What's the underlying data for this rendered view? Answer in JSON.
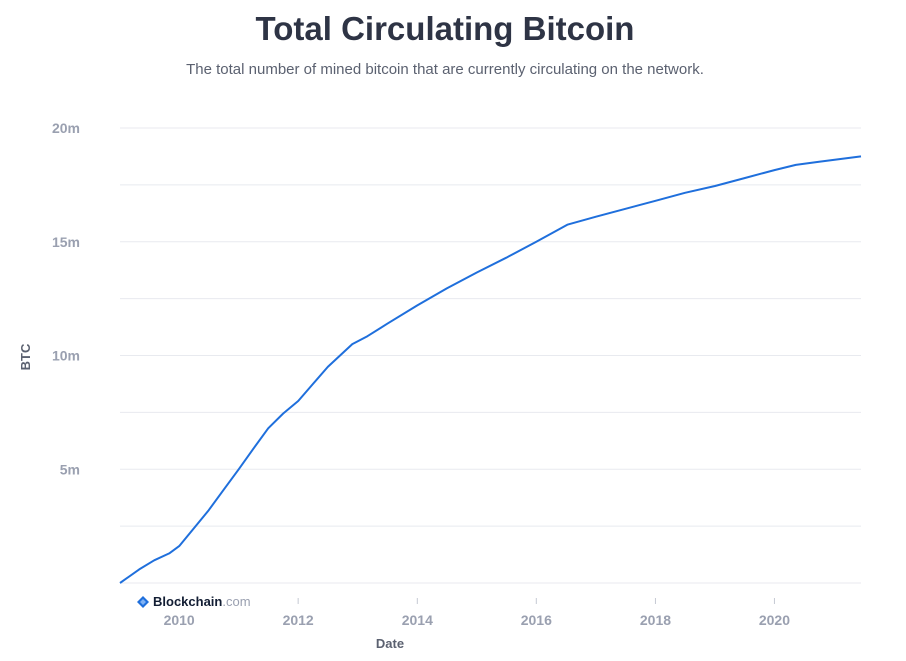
{
  "header": {
    "title": "Total Circulating Bitcoin",
    "subtitle": "The total number of mined bitcoin that are currently circulating on the network."
  },
  "brand": {
    "name": "Blockchain",
    "domain": ".com"
  },
  "colors": {
    "line": "#1f6fdc",
    "grid": "#e8eaef",
    "brand_icon": "#1f6fdc"
  },
  "chart_data": {
    "type": "line",
    "title": "Total Circulating Bitcoin",
    "subtitle": "The total number of mined bitcoin that are currently circulating on the network.",
    "xlabel": "Date",
    "ylabel": "BTC",
    "x_ticks": [
      "2010",
      "2012",
      "2014",
      "2016",
      "2018",
      "2020"
    ],
    "y_ticks": [
      "5m",
      "10m",
      "15m",
      "20m"
    ],
    "y_tick_values": [
      5000000,
      10000000,
      15000000,
      20000000
    ],
    "ylim": [
      0,
      20000000
    ],
    "xlim": [
      "2009-01-03",
      "2021-06-15"
    ],
    "grid": true,
    "legend": "none",
    "series": [
      {
        "points": [
          [
            "2009-01-03",
            0
          ],
          [
            "2009-05-01",
            600000
          ],
          [
            "2009-08-01",
            1000000
          ],
          [
            "2009-11-01",
            1300000
          ],
          [
            "2010-01-01",
            1620000
          ],
          [
            "2010-04-01",
            2400000
          ],
          [
            "2010-07-01",
            3200000
          ],
          [
            "2010-10-01",
            4100000
          ],
          [
            "2011-01-01",
            5000000
          ],
          [
            "2011-04-01",
            5900000
          ],
          [
            "2011-07-01",
            6800000
          ],
          [
            "2011-10-01",
            7450000
          ],
          [
            "2012-01-01",
            8000000
          ],
          [
            "2012-04-01",
            8750000
          ],
          [
            "2012-07-01",
            9500000
          ],
          [
            "2012-11-28",
            10500000
          ],
          [
            "2013-03-01",
            10850000
          ],
          [
            "2013-07-01",
            11400000
          ],
          [
            "2014-01-01",
            12200000
          ],
          [
            "2014-07-01",
            12950000
          ],
          [
            "2015-01-01",
            13650000
          ],
          [
            "2015-07-01",
            14300000
          ],
          [
            "2016-01-01",
            15000000
          ],
          [
            "2016-07-09",
            15750000
          ],
          [
            "2017-01-01",
            16100000
          ],
          [
            "2017-07-01",
            16450000
          ],
          [
            "2018-01-01",
            16800000
          ],
          [
            "2018-07-01",
            17150000
          ],
          [
            "2019-01-01",
            17450000
          ],
          [
            "2019-07-01",
            17800000
          ],
          [
            "2020-01-01",
            18150000
          ],
          [
            "2020-05-11",
            18380000
          ],
          [
            "2020-10-01",
            18520000
          ],
          [
            "2021-06-15",
            18750000
          ]
        ]
      }
    ]
  }
}
